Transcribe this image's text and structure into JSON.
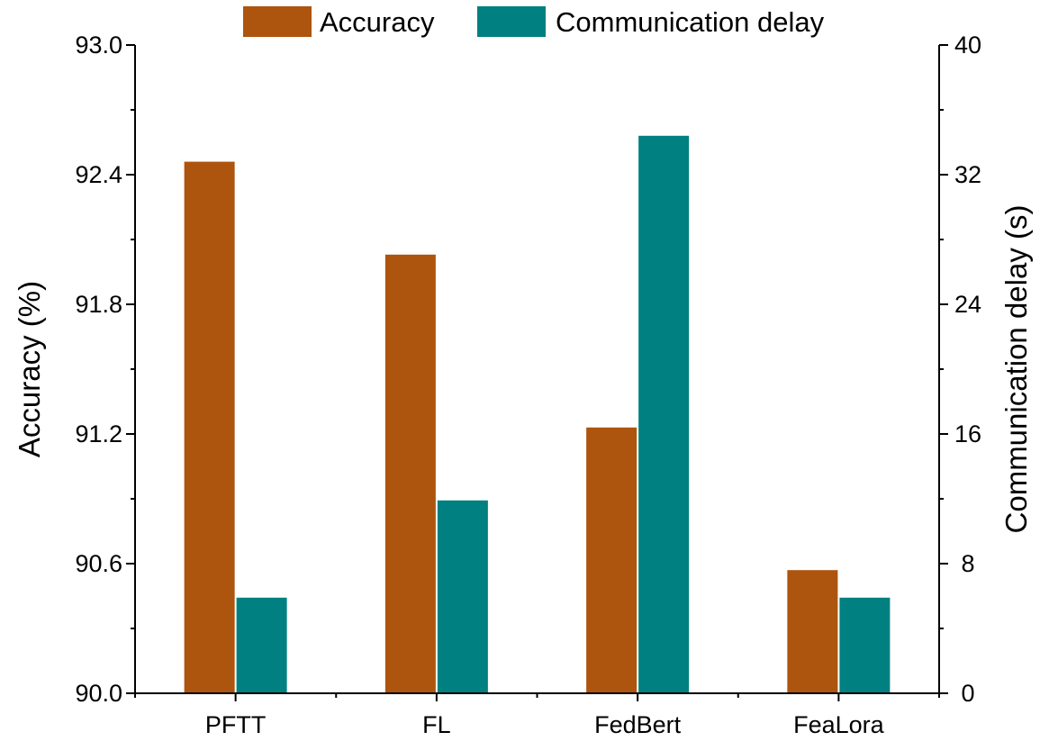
{
  "chart_data": {
    "type": "bar",
    "categories": [
      "PFTT",
      "FL",
      "FedBert",
      "FeaLora"
    ],
    "series": [
      {
        "name": "Accuracy",
        "axis": "left",
        "color": "#ad540e",
        "values": [
          92.46,
          92.03,
          91.23,
          90.57
        ]
      },
      {
        "name": "Communication delay",
        "axis": "right",
        "color": "#008080",
        "values": [
          5.9,
          11.9,
          34.4,
          5.9
        ]
      }
    ],
    "left_axis": {
      "label": "Accuracy (%)",
      "lim": [
        90.0,
        93.0
      ],
      "ticks": [
        90.0,
        90.6,
        91.2,
        91.8,
        92.4,
        93.0
      ],
      "tick_labels": [
        "90.0",
        "90.6",
        "91.2",
        "91.8",
        "92.4",
        "93.0"
      ]
    },
    "right_axis": {
      "label": "Communication delay (s)",
      "lim": [
        0,
        40
      ],
      "ticks": [
        0,
        8,
        16,
        24,
        32,
        40
      ],
      "tick_labels": [
        "0",
        "8",
        "16",
        "24",
        "32",
        "40"
      ]
    },
    "xlabel": "",
    "title": "",
    "grid": false,
    "legend_position": "top-center"
  }
}
